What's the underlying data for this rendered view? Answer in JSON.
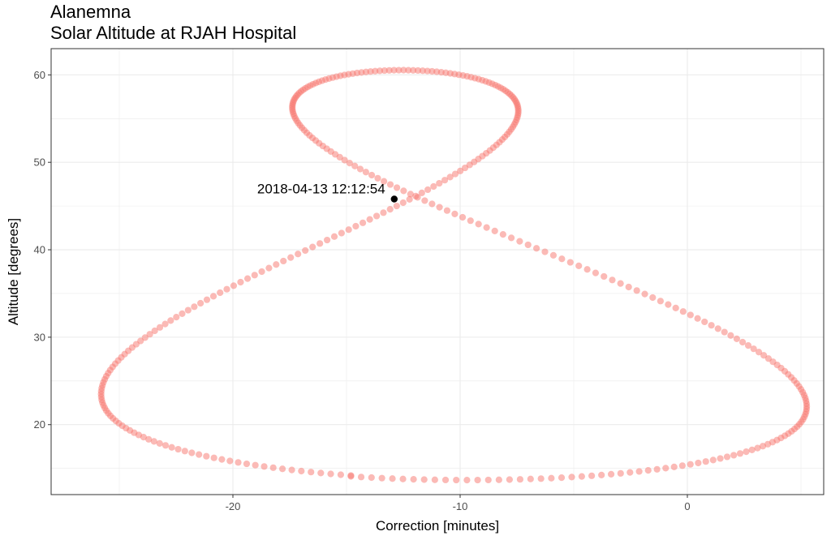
{
  "chart_data": {
    "type": "scatter",
    "title": "Alanemna",
    "subtitle": "Solar Altitude at RJAH Hospital",
    "xlabel": "Correction [minutes]",
    "ylabel": "Altitude [degrees]",
    "xlim": [
      -28,
      6
    ],
    "ylim": [
      12,
      63
    ],
    "x_ticks": [
      -20,
      -10,
      0
    ],
    "y_ticks": [
      20,
      30,
      40,
      50,
      60
    ],
    "grid": true,
    "analemma": {
      "day_of_year_range": [
        1,
        365
      ],
      "declination_amplitude_deg": 23.44,
      "equator_altitude_deg": 37.1,
      "point_color": "#f8766d",
      "point_opacity": 0.5
    },
    "highlight": {
      "label": "2018-04-13 12:12:54",
      "x": -12.9,
      "y": 45.8,
      "color": "#000000"
    }
  }
}
